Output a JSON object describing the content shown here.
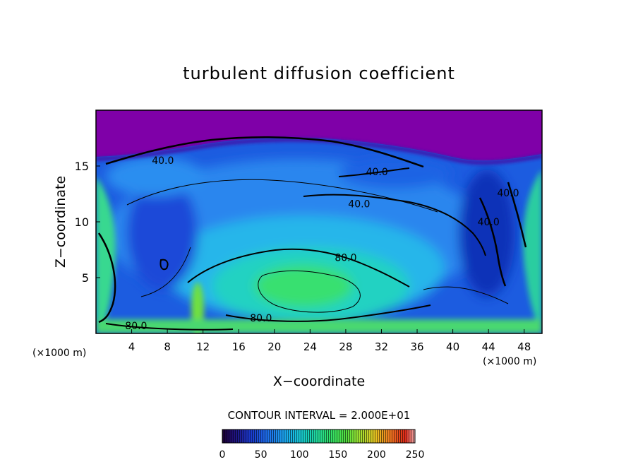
{
  "chart_data": {
    "type": "heatmap",
    "title": "turbulent diffusion coefficient",
    "xlabel": "X−coordinate",
    "ylabel": "Z−coordinate",
    "x_unit_left": "(×1000 m)",
    "x_unit_right": "(×1000 m)",
    "xlim": [
      0,
      50
    ],
    "ylim": [
      0,
      20
    ],
    "xticks": [
      4,
      8,
      12,
      16,
      20,
      24,
      28,
      32,
      36,
      40,
      44,
      48
    ],
    "xtick_labels": [
      "4",
      "8",
      "12",
      "16",
      "20",
      "24",
      "28",
      "32",
      "36",
      "40",
      "44",
      "48"
    ],
    "yticks": [
      5,
      10,
      15
    ],
    "ytick_labels": [
      "5",
      "10",
      "15"
    ],
    "contour_interval_text": "CONTOUR INTERVAL = 2.000E+01",
    "contour_interval": 20,
    "contour_labels": [
      {
        "text": "40.0",
        "x": 7.5,
        "y": 15.5
      },
      {
        "text": "40.0",
        "x": 31.5,
        "y": 14.5
      },
      {
        "text": "40.0",
        "x": 29.5,
        "y": 11.6
      },
      {
        "text": "40.0",
        "x": 44.0,
        "y": 10.0
      },
      {
        "text": "40.0",
        "x": 46.2,
        "y": 12.6
      },
      {
        "text": "80.0",
        "x": 28.0,
        "y": 6.8
      },
      {
        "text": "80.0",
        "x": 18.5,
        "y": 1.4
      },
      {
        "text": "80.0",
        "x": 4.5,
        "y": 0.7
      }
    ],
    "colorbar": {
      "min": 0,
      "max": 250,
      "ticks": [
        0,
        50,
        100,
        150,
        200,
        250
      ],
      "tick_labels": [
        "0",
        "50",
        "100",
        "150",
        "200",
        "250"
      ]
    },
    "field_features": [
      {
        "kind": "max",
        "x": 23.5,
        "y": 4.6,
        "value": 125
      },
      {
        "kind": "upper_layer",
        "z_from": 15.5,
        "value": 5
      }
    ]
  },
  "colors": {
    "upper_layer": "#7f00a8",
    "frame": "#000000",
    "background": "#ffffff"
  }
}
